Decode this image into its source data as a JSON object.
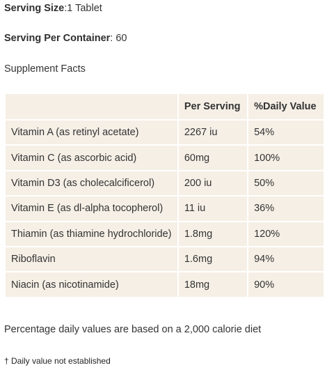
{
  "serving_size": {
    "label": "Serving Size",
    "value": ":1 Tablet"
  },
  "serving_per_container": {
    "label": "Serving Per Container",
    "value": ": 60"
  },
  "heading": "Supplement Facts",
  "table": {
    "headers": [
      "",
      "Per Serving",
      "%Daily Value"
    ],
    "rows": [
      {
        "name": "Vitamin A (as retinyl acetate)",
        "per_serving": "2267 iu",
        "daily_value": "54%"
      },
      {
        "name": "Vitamin C (as ascorbic acid)",
        "per_serving": "60mg",
        "daily_value": "100%"
      },
      {
        "name": "Vitamin D3 (as cholecalcificerol)",
        "per_serving": "200 iu",
        "daily_value": "50%"
      },
      {
        "name": "Vitamin E (as dl-alpha tocopherol)",
        "per_serving": "11 iu",
        "daily_value": "36%"
      },
      {
        "name": "Thiamin (as thiamine hydrochloride)",
        "per_serving": "1.8mg",
        "daily_value": "120%"
      },
      {
        "name": "Riboflavin",
        "per_serving": "1.6mg",
        "daily_value": "94%"
      },
      {
        "name": "Niacin (as nicotinamide)",
        "per_serving": "18mg",
        "daily_value": "90%"
      }
    ]
  },
  "percent_note": "Percentage daily values are based on a 2,000 calorie diet",
  "dagger_note": "† Daily value not established",
  "colors": {
    "table_bg": "#f5efe6",
    "cell_border": "#ffffff",
    "text": "#333333"
  }
}
